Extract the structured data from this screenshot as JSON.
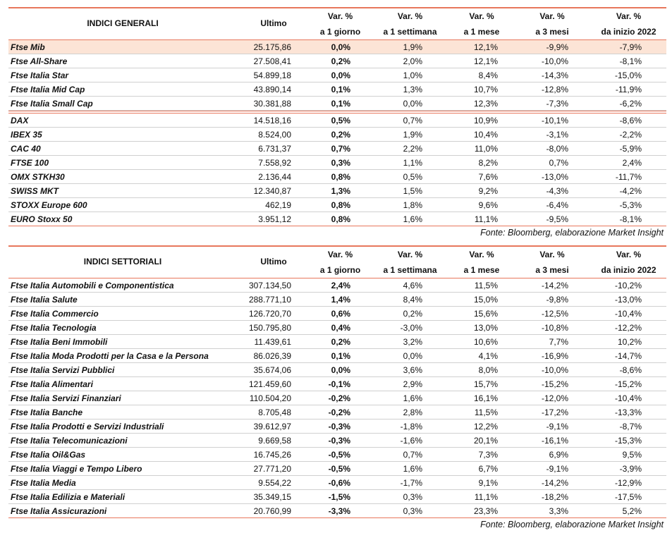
{
  "tables": [
    {
      "header": [
        [
          "INDICI GENERALI"
        ],
        [
          "Ultimo"
        ],
        [
          "Var. %",
          "a 1 giorno"
        ],
        [
          "Var. %",
          "a 1 settimana"
        ],
        [
          "Var. %",
          "a 1 mese"
        ],
        [
          "Var. %",
          "a 3 mesi"
        ],
        [
          "Var. %",
          "da inizio 2022"
        ]
      ],
      "sections": [
        [
          [
            "Ftse Mib",
            "25.175,86",
            "0,0%",
            "1,9%",
            "12,1%",
            "-9,9%",
            "-7,9%"
          ],
          [
            "Ftse All-Share",
            "27.508,41",
            "0,2%",
            "2,0%",
            "12,1%",
            "-10,0%",
            "-8,1%"
          ],
          [
            "Ftse Italia Star",
            "54.899,18",
            "0,0%",
            "1,0%",
            "8,4%",
            "-14,3%",
            "-15,0%"
          ],
          [
            "Ftse Italia Mid Cap",
            "43.890,14",
            "0,1%",
            "1,3%",
            "10,7%",
            "-12,8%",
            "-11,9%"
          ],
          [
            "Ftse Italia Small Cap",
            "30.381,88",
            "0,1%",
            "0,0%",
            "12,3%",
            "-7,3%",
            "-6,2%"
          ]
        ],
        [
          [
            "DAX",
            "14.518,16",
            "0,5%",
            "0,7%",
            "10,9%",
            "-10,1%",
            "-8,6%"
          ],
          [
            "IBEX 35",
            "8.524,00",
            "0,2%",
            "1,9%",
            "10,4%",
            "-3,1%",
            "-2,2%"
          ],
          [
            "CAC 40",
            "6.731,37",
            "0,7%",
            "2,2%",
            "11,0%",
            "-8,0%",
            "-5,9%"
          ],
          [
            "FTSE 100",
            "7.558,92",
            "0,3%",
            "1,1%",
            "8,2%",
            "0,7%",
            "2,4%"
          ],
          [
            "OMX STKH30",
            "2.136,44",
            "0,8%",
            "0,5%",
            "7,6%",
            "-13,0%",
            "-11,7%"
          ],
          [
            "SWISS MKT",
            "12.340,87",
            "1,3%",
            "1,5%",
            "9,2%",
            "-4,3%",
            "-4,2%"
          ],
          [
            "STOXX Europe 600",
            "462,19",
            "0,8%",
            "1,8%",
            "9,6%",
            "-6,4%",
            "-5,3%"
          ],
          [
            "EURO Stoxx 50",
            "3.951,12",
            "0,8%",
            "1,6%",
            "11,1%",
            "-9,5%",
            "-8,1%"
          ]
        ]
      ],
      "source": "Fonte: Bloomberg, elaborazione Market Insight"
    },
    {
      "header": [
        [
          "INDICI SETTORIALI"
        ],
        [
          "Ultimo"
        ],
        [
          "Var. %",
          "a 1 giorno"
        ],
        [
          "Var. %",
          "a 1 settimana"
        ],
        [
          "Var. %",
          "a 1 mese"
        ],
        [
          "Var. %",
          "a 3 mesi"
        ],
        [
          "Var. %",
          "da inizio 2022"
        ]
      ],
      "sections": [
        [
          [
            "Ftse Italia Automobili e Componentistica",
            "307.134,50",
            "2,4%",
            "4,6%",
            "11,5%",
            "-14,2%",
            "-10,2%"
          ],
          [
            "Ftse Italia Salute",
            "288.771,10",
            "1,4%",
            "8,4%",
            "15,0%",
            "-9,8%",
            "-13,0%"
          ],
          [
            "Ftse Italia Commercio",
            "126.720,70",
            "0,6%",
            "0,2%",
            "15,6%",
            "-12,5%",
            "-10,4%"
          ],
          [
            "Ftse Italia Tecnologia",
            "150.795,80",
            "0,4%",
            "-3,0%",
            "13,0%",
            "-10,8%",
            "-12,2%"
          ],
          [
            "Ftse Italia Beni Immobili",
            "11.439,61",
            "0,2%",
            "3,2%",
            "10,6%",
            "7,7%",
            "10,2%"
          ],
          [
            "Ftse Italia Moda Prodotti per la Casa e la Persona",
            "86.026,39",
            "0,1%",
            "0,0%",
            "4,1%",
            "-16,9%",
            "-14,7%"
          ],
          [
            "Ftse Italia Servizi Pubblici",
            "35.674,06",
            "0,0%",
            "3,6%",
            "8,0%",
            "-10,0%",
            "-8,6%"
          ],
          [
            "Ftse Italia Alimentari",
            "121.459,60",
            "-0,1%",
            "2,9%",
            "15,7%",
            "-15,2%",
            "-15,2%"
          ],
          [
            "Ftse Italia Servizi Finanziari",
            "110.504,20",
            "-0,2%",
            "1,6%",
            "16,1%",
            "-12,0%",
            "-10,4%"
          ],
          [
            "Ftse Italia Banche",
            "8.705,48",
            "-0,2%",
            "2,8%",
            "11,5%",
            "-17,2%",
            "-13,3%"
          ],
          [
            "Ftse Italia Prodotti e Servizi Industriali",
            "39.612,97",
            "-0,3%",
            "-1,8%",
            "12,2%",
            "-9,1%",
            "-8,7%"
          ],
          [
            "Ftse Italia Telecomunicazioni",
            "9.669,58",
            "-0,3%",
            "-1,6%",
            "20,1%",
            "-16,1%",
            "-15,3%"
          ],
          [
            "Ftse Italia Oil&Gas",
            "16.745,26",
            "-0,5%",
            "0,7%",
            "7,3%",
            "6,9%",
            "9,5%"
          ],
          [
            "Ftse Italia Viaggi e Tempo Libero",
            "27.771,20",
            "-0,5%",
            "1,6%",
            "6,7%",
            "-9,1%",
            "-3,9%"
          ],
          [
            "Ftse Italia Media",
            "9.554,22",
            "-0,6%",
            "-1,7%",
            "9,1%",
            "-14,2%",
            "-12,9%"
          ],
          [
            "Ftse Italia Edilizia e Materiali",
            "35.349,15",
            "-1,5%",
            "0,3%",
            "11,1%",
            "-18,2%",
            "-17,5%"
          ],
          [
            "Ftse Italia Assicurazioni",
            "20.760,99",
            "-3,3%",
            "0,3%",
            "23,3%",
            "3,3%",
            "5,2%"
          ]
        ]
      ],
      "source": "Fonte: Bloomberg, elaborazione Market Insight"
    }
  ]
}
